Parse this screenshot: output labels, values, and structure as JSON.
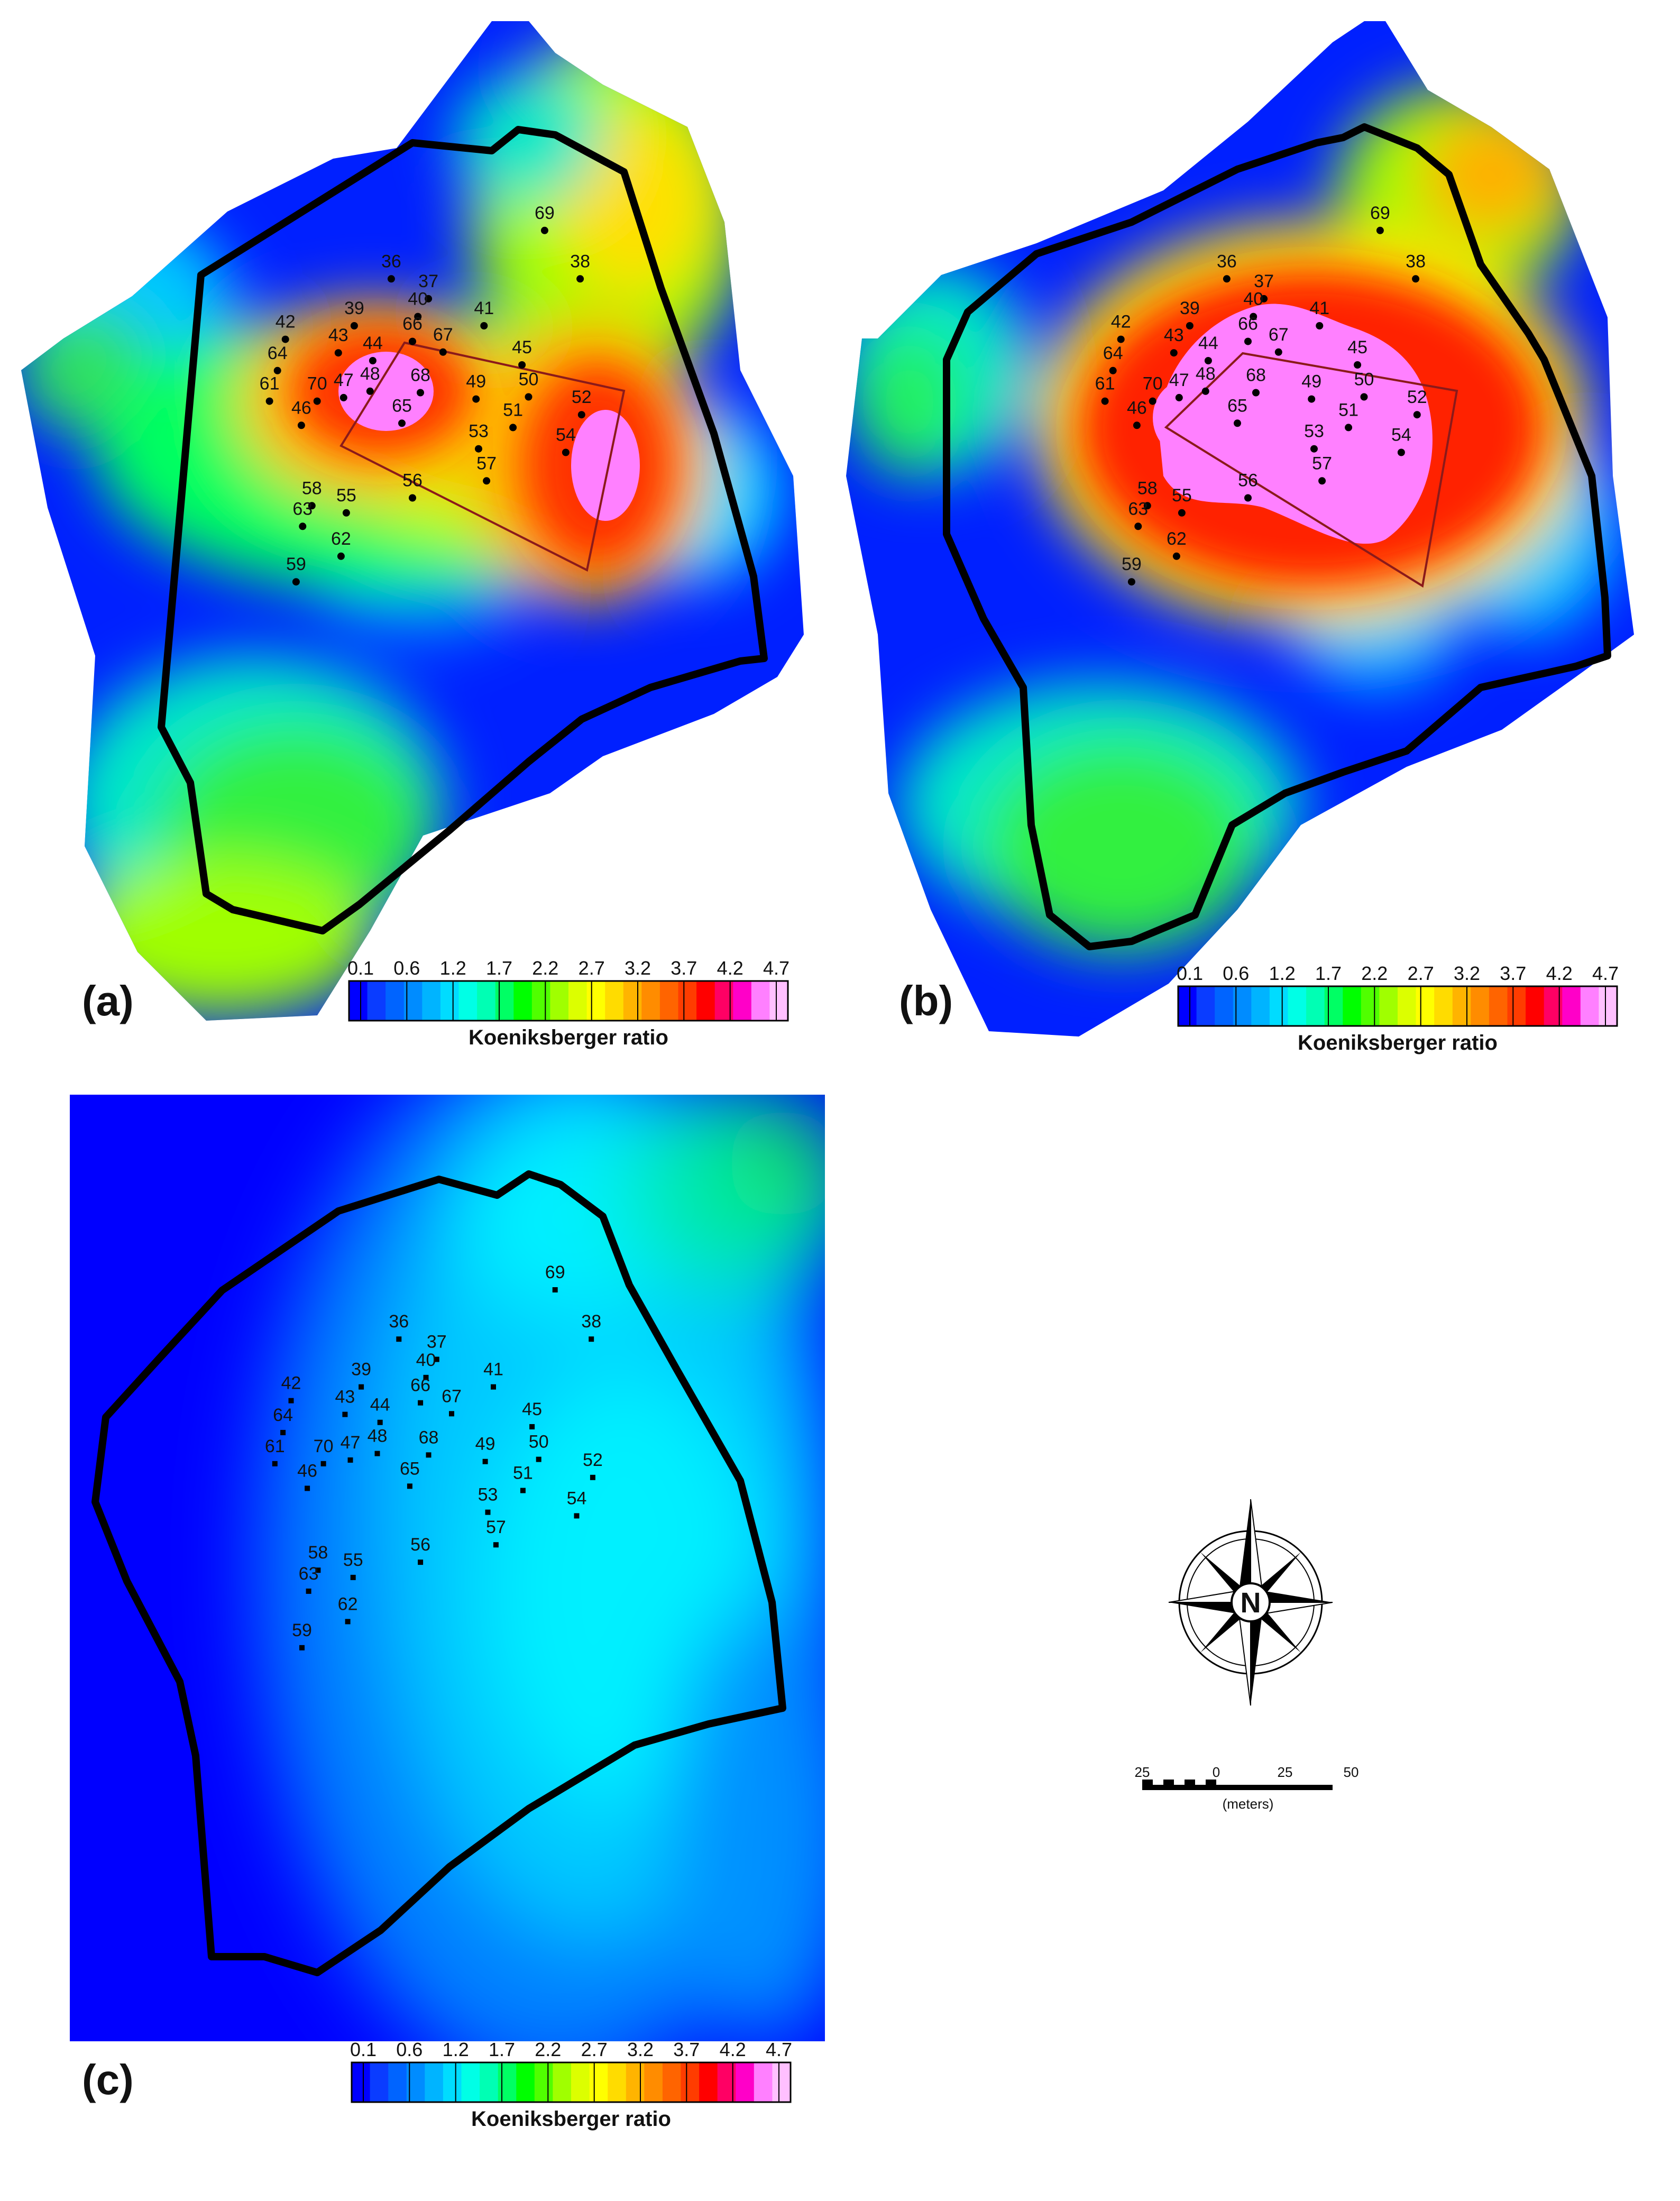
{
  "figure": {
    "panels": [
      {
        "letter": "(a)",
        "colorbar_title": "Koeniksberger ratio",
        "stations": [
          {
            "id": "69",
            "e": 96.6,
            "n": 136.5
          },
          {
            "id": "36",
            "e": -11.2,
            "n": 102.5
          },
          {
            "id": "37",
            "e": 14.9,
            "n": 88.5
          },
          {
            "id": "38",
            "e": 121.6,
            "n": 102.5
          },
          {
            "id": "39",
            "e": -37.2,
            "n": 69.5
          },
          {
            "id": "40",
            "e": 7.5,
            "n": 76.0
          },
          {
            "id": "41",
            "e": 54.0,
            "n": 69.5
          },
          {
            "id": "42",
            "e": -85.6,
            "n": 60.0
          },
          {
            "id": "43",
            "e": -48.4,
            "n": 50.5
          },
          {
            "id": "66",
            "e": 3.7,
            "n": 58.5
          },
          {
            "id": "67",
            "e": 25.2,
            "n": 51.0
          },
          {
            "id": "44",
            "e": -24.2,
            "n": 45.0
          },
          {
            "id": "45",
            "e": 80.7,
            "n": 42.0
          },
          {
            "id": "64",
            "e": -91.2,
            "n": 38.0
          },
          {
            "id": "68",
            "e": 9.3,
            "n": 22.5
          },
          {
            "id": "48",
            "e": -26.1,
            "n": 23.5
          },
          {
            "id": "47",
            "e": -44.7,
            "n": 19.0
          },
          {
            "id": "50",
            "e": 85.3,
            "n": 19.5
          },
          {
            "id": "49",
            "e": 48.4,
            "n": 18.0
          },
          {
            "id": "61",
            "e": -96.8,
            "n": 16.5
          },
          {
            "id": "70",
            "e": -63.3,
            "n": 16.5
          },
          {
            "id": "52",
            "e": 122.6,
            "n": 7.0
          },
          {
            "id": "46",
            "e": -74.4,
            "n": -0.5
          },
          {
            "id": "65",
            "e": -3.7,
            "n": 1.0
          },
          {
            "id": "51",
            "e": 74.4,
            "n": -2.0
          },
          {
            "id": "53",
            "e": 50.2,
            "n": -17.0
          },
          {
            "id": "54",
            "e": 111.5,
            "n": -19.5
          },
          {
            "id": "57",
            "e": 55.8,
            "n": -39.5
          },
          {
            "id": "56",
            "e": 3.7,
            "n": -51.5
          },
          {
            "id": "58",
            "e": -67.0,
            "n": -57.0
          },
          {
            "id": "55",
            "e": -42.8,
            "n": -62.0
          },
          {
            "id": "63",
            "e": -73.5,
            "n": -71.5
          },
          {
            "id": "62",
            "e": -46.5,
            "n": -92.5
          },
          {
            "id": "59",
            "e": -78.1,
            "n": -110.5
          }
        ]
      },
      {
        "letter": "(b)",
        "colorbar_title": "Koeniksberger ratio",
        "stations": [
          {
            "id": "69",
            "e": 96.6,
            "n": 136.5
          },
          {
            "id": "36",
            "e": -11.2,
            "n": 102.5
          },
          {
            "id": "37",
            "e": 14.9,
            "n": 88.5
          },
          {
            "id": "38",
            "e": 121.6,
            "n": 102.5
          },
          {
            "id": "39",
            "e": -37.2,
            "n": 69.5
          },
          {
            "id": "40",
            "e": 7.5,
            "n": 76.0
          },
          {
            "id": "41",
            "e": 54.0,
            "n": 69.5
          },
          {
            "id": "42",
            "e": -85.6,
            "n": 60.0
          },
          {
            "id": "43",
            "e": -48.4,
            "n": 50.5
          },
          {
            "id": "66",
            "e": 3.7,
            "n": 58.5
          },
          {
            "id": "67",
            "e": 25.2,
            "n": 51.0
          },
          {
            "id": "44",
            "e": -24.2,
            "n": 45.0
          },
          {
            "id": "45",
            "e": 80.7,
            "n": 42.0
          },
          {
            "id": "64",
            "e": -91.2,
            "n": 38.0
          },
          {
            "id": "68",
            "e": 9.3,
            "n": 22.5
          },
          {
            "id": "48",
            "e": -26.1,
            "n": 23.5
          },
          {
            "id": "47",
            "e": -44.7,
            "n": 19.0
          },
          {
            "id": "50",
            "e": 85.3,
            "n": 19.5
          },
          {
            "id": "49",
            "e": 48.4,
            "n": 18.0
          },
          {
            "id": "61",
            "e": -96.8,
            "n": 16.5
          },
          {
            "id": "70",
            "e": -63.3,
            "n": 16.5
          },
          {
            "id": "52",
            "e": 122.6,
            "n": 7.0
          },
          {
            "id": "46",
            "e": -74.4,
            "n": -0.5
          },
          {
            "id": "65",
            "e": -3.7,
            "n": 1.0
          },
          {
            "id": "51",
            "e": 74.4,
            "n": -2.0
          },
          {
            "id": "53",
            "e": 50.2,
            "n": -17.0
          },
          {
            "id": "54",
            "e": 111.5,
            "n": -19.5
          },
          {
            "id": "57",
            "e": 55.8,
            "n": -39.5
          },
          {
            "id": "56",
            "e": 3.7,
            "n": -51.5
          },
          {
            "id": "58",
            "e": -67.0,
            "n": -57.0
          },
          {
            "id": "55",
            "e": -42.8,
            "n": -62.0
          },
          {
            "id": "63",
            "e": -73.5,
            "n": -71.5
          },
          {
            "id": "62",
            "e": -46.5,
            "n": -92.5
          },
          {
            "id": "59",
            "e": -78.1,
            "n": -110.5
          }
        ]
      },
      {
        "letter": "(c)",
        "colorbar_title": "Koeniksberger ratio",
        "stations": [
          {
            "id": "69",
            "e": 96.6,
            "n": 136.5
          },
          {
            "id": "36",
            "e": -11.2,
            "n": 102.5
          },
          {
            "id": "37",
            "e": 14.9,
            "n": 88.5
          },
          {
            "id": "38",
            "e": 121.6,
            "n": 102.5
          },
          {
            "id": "39",
            "e": -37.2,
            "n": 69.5
          },
          {
            "id": "40",
            "e": 7.5,
            "n": 76.0
          },
          {
            "id": "41",
            "e": 54.0,
            "n": 69.5
          },
          {
            "id": "42",
            "e": -85.6,
            "n": 60.0
          },
          {
            "id": "43",
            "e": -48.4,
            "n": 50.5
          },
          {
            "id": "66",
            "e": 3.7,
            "n": 58.5
          },
          {
            "id": "67",
            "e": 25.2,
            "n": 51.0
          },
          {
            "id": "44",
            "e": -24.2,
            "n": 45.0
          },
          {
            "id": "45",
            "e": 80.7,
            "n": 42.0
          },
          {
            "id": "64",
            "e": -91.2,
            "n": 38.0
          },
          {
            "id": "68",
            "e": 9.3,
            "n": 22.5
          },
          {
            "id": "48",
            "e": -26.1,
            "n": 23.5
          },
          {
            "id": "47",
            "e": -44.7,
            "n": 19.0
          },
          {
            "id": "50",
            "e": 85.3,
            "n": 19.5
          },
          {
            "id": "49",
            "e": 48.4,
            "n": 18.0
          },
          {
            "id": "61",
            "e": -96.8,
            "n": 16.5
          },
          {
            "id": "70",
            "e": -63.3,
            "n": 16.5
          },
          {
            "id": "52",
            "e": 122.6,
            "n": 7.0
          },
          {
            "id": "46",
            "e": -74.4,
            "n": -0.5
          },
          {
            "id": "65",
            "e": -3.7,
            "n": 1.0
          },
          {
            "id": "51",
            "e": 74.4,
            "n": -2.0
          },
          {
            "id": "53",
            "e": 50.2,
            "n": -17.0
          },
          {
            "id": "54",
            "e": 111.5,
            "n": -19.5
          },
          {
            "id": "57",
            "e": 55.8,
            "n": -39.5
          },
          {
            "id": "56",
            "e": 3.7,
            "n": -51.5
          },
          {
            "id": "58",
            "e": -67.0,
            "n": -57.0
          },
          {
            "id": "55",
            "e": -42.8,
            "n": -62.0
          },
          {
            "id": "63",
            "e": -73.5,
            "n": -71.5
          },
          {
            "id": "62",
            "e": -46.5,
            "n": -92.5
          },
          {
            "id": "59",
            "e": -78.1,
            "n": -110.5
          }
        ]
      }
    ],
    "colorbar": {
      "tick_labels": [
        "0.1",
        "0.6",
        "1.2",
        "1.7",
        "2.2",
        "2.7",
        "3.2",
        "3.7",
        "4.2",
        "4.7"
      ],
      "colors": [
        "#0000ff",
        "#0a3cff",
        "#0064ff",
        "#008cff",
        "#00b4ff",
        "#00dcff",
        "#00ffe6",
        "#00ffb4",
        "#00ff64",
        "#00ff00",
        "#50ff00",
        "#a0ff00",
        "#dcff00",
        "#ffff00",
        "#ffdc00",
        "#ffb400",
        "#ff8c00",
        "#ff6400",
        "#ff3c00",
        "#ff0000",
        "#ff0064",
        "#ff00c8",
        "#ff80ff",
        "#ffc0ff"
      ]
    },
    "compass": {
      "north_label": "N"
    },
    "scale_bar": {
      "ticks": [
        "25",
        "0",
        "25",
        "50"
      ],
      "unit": "(meters)"
    }
  }
}
